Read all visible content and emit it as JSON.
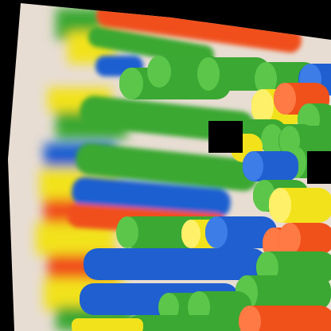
{
  "image": {
    "subject": "straws",
    "palette": {
      "green": "#3aa832",
      "green_light": "#5cc64a",
      "yellow": "#f2e21c",
      "orange": "#f0501a",
      "blue": "#1f5fd0",
      "backdrop": "#e8ddd3",
      "matte": "#000000"
    }
  }
}
